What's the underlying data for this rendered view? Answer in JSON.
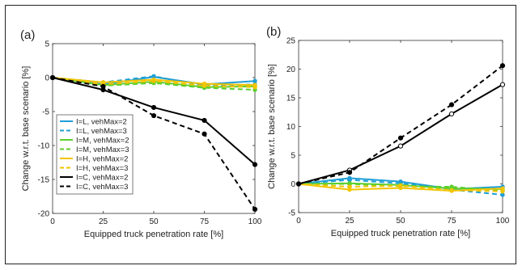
{
  "chart_data": [
    {
      "type": "line",
      "panel_label": "(a)",
      "xlabel": "Equipped truck penetration rate [%]",
      "ylabel": "Change w.r.t. base scenario [%]",
      "x": [
        0,
        25,
        50,
        75,
        100
      ],
      "xlim": [
        0,
        100
      ],
      "ylim": [
        -20,
        5
      ],
      "xticks": [
        "0",
        "25",
        "50",
        "75",
        "100"
      ],
      "yticks": [
        "5",
        "0",
        "-5",
        "-10",
        "-15",
        "-20"
      ],
      "ytick_values": [
        5,
        0,
        -5,
        -10,
        -15,
        -20
      ],
      "legend_position": "inside-left",
      "series": [
        {
          "name": "I=L, vehMax=2",
          "color": "#1f9fd6",
          "dash": "solid",
          "values": [
            0,
            -1.0,
            0.1,
            -1.0,
            -0.5
          ]
        },
        {
          "name": "I=L, vehMax=3",
          "color": "#1f9fd6",
          "dash": "dashed",
          "values": [
            0,
            -0.7,
            0.2,
            -1.2,
            -1.0
          ]
        },
        {
          "name": "I=M, vehMax=2",
          "color": "#5ccf2e",
          "dash": "solid",
          "values": [
            0,
            -1.1,
            -0.6,
            -1.4,
            -1.3
          ]
        },
        {
          "name": "I=M, vehMax=3",
          "color": "#5ccf2e",
          "dash": "dashed",
          "values": [
            0,
            -1.2,
            -0.8,
            -1.5,
            -1.8
          ]
        },
        {
          "name": "I=H, vehMax=2",
          "color": "#f2c400",
          "dash": "solid",
          "values": [
            0,
            -0.7,
            -0.3,
            -0.9,
            -1.1
          ]
        },
        {
          "name": "I=H, vehMax=3",
          "color": "#f2c400",
          "dash": "dashed",
          "values": [
            0,
            -1.0,
            -0.5,
            -1.2,
            -1.4
          ]
        },
        {
          "name": "I=C, vehMax=2",
          "color": "#000000",
          "dash": "solid",
          "values": [
            0,
            -1.8,
            -4.4,
            -6.3,
            -12.8
          ]
        },
        {
          "name": "I=C, vehMax=3",
          "color": "#000000",
          "dash": "dashed",
          "values": [
            0,
            -1.3,
            -5.6,
            -8.3,
            -19.4
          ]
        }
      ]
    },
    {
      "type": "line",
      "panel_label": "(b)",
      "xlabel": "Equipped truck penetration rate [%]",
      "ylabel": "Change w.r.t. base scenario [%]",
      "x": [
        0,
        25,
        50,
        75,
        100
      ],
      "xlim": [
        0,
        100
      ],
      "ylim": [
        -5,
        25
      ],
      "xticks": [
        "0",
        "25",
        "50",
        "75",
        "100"
      ],
      "yticks": [
        "25",
        "20",
        "15",
        "10",
        "5",
        "0",
        "-5"
      ],
      "ytick_values": [
        25,
        20,
        15,
        10,
        5,
        0,
        -5
      ],
      "series": [
        {
          "color": "#1f9fd6",
          "dash": "solid",
          "values": [
            0,
            1.0,
            0.4,
            -0.9,
            -0.5
          ]
        },
        {
          "color": "#1f9fd6",
          "dash": "dashed",
          "values": [
            0,
            0.7,
            0.1,
            -1.0,
            -1.9
          ]
        },
        {
          "color": "#5ccf2e",
          "dash": "solid",
          "values": [
            0,
            0.1,
            -0.2,
            -0.8,
            -0.9
          ]
        },
        {
          "color": "#5ccf2e",
          "dash": "dashed",
          "values": [
            0,
            0.0,
            -0.4,
            -0.5,
            -1.2
          ]
        },
        {
          "color": "#f2c400",
          "dash": "solid",
          "values": [
            0,
            -1.0,
            -0.7,
            -1.2,
            -0.8
          ]
        },
        {
          "color": "#f2c400",
          "dash": "dashed",
          "values": [
            0,
            -0.5,
            -0.3,
            -1.1,
            -1.3
          ]
        },
        {
          "color": "#000000",
          "dash": "solid",
          "values": [
            0,
            2.4,
            6.6,
            12.2,
            17.3
          ]
        },
        {
          "color": "#000000",
          "dash": "dashed",
          "values": [
            0,
            2.0,
            8.0,
            13.8,
            20.6
          ]
        }
      ]
    }
  ]
}
